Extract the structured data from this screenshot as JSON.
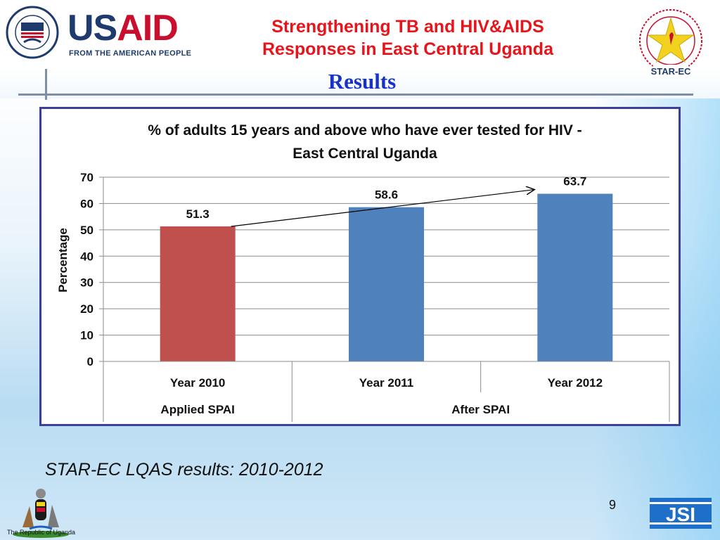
{
  "header": {
    "usaid_word_us": "US",
    "usaid_word_aid": "AID",
    "usaid_tagline": "FROM THE AMERICAN PEOPLE",
    "title_line1": "Strengthening TB and HIV&AIDS",
    "title_line2": "Responses in East Central Uganda",
    "subtitle": "Results",
    "star_ec_label": "STAR-EC"
  },
  "chart_data": {
    "type": "bar",
    "title_line1": "% of adults 15 years and above who have ever tested for HIV -",
    "title_line2": "East Central Uganda",
    "categories": [
      "Year 2010",
      "Year 2011",
      "Year 2012"
    ],
    "group_labels": [
      "Applied SPAI",
      "After SPAI"
    ],
    "values": [
      51.3,
      58.6,
      63.7
    ],
    "value_labels": [
      "51.3",
      "58.6",
      "63.7"
    ],
    "bar_colors": [
      "#c0504d",
      "#4f81bd",
      "#4f81bd"
    ],
    "ylabel": "Percentage",
    "ylim": [
      0,
      70
    ],
    "yticks": [
      0,
      10,
      20,
      30,
      40,
      50,
      60,
      70
    ],
    "grid": true,
    "trend_arrow": "from Year 2010 bar top to Year 2012 bar top"
  },
  "footer": {
    "caption": "STAR-EC LQAS results: 2010-2012",
    "page_number": "9",
    "uganda_label": "The Republic of Uganda",
    "jsi_label": "JSI"
  },
  "colors": {
    "title_red": "#e8141b",
    "results_blue": "#1732c8",
    "frame": "#3b3f9e"
  }
}
